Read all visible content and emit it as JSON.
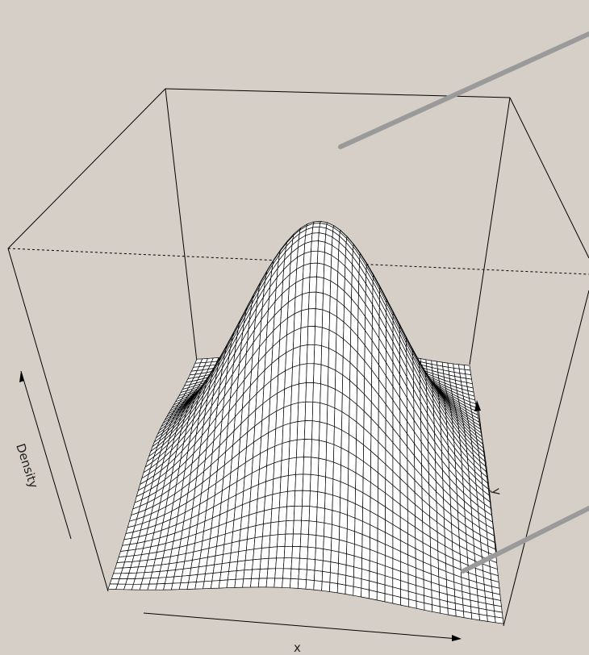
{
  "chart_data": {
    "type": "surface",
    "surface": "bivariate-density",
    "rendering": "wireframe-perspective",
    "xlabel": "x",
    "ylabel": "y",
    "zlabel": "Density",
    "peak": {
      "x": 0.5,
      "y": 0.5,
      "z": 1
    },
    "grid_lines": 50,
    "tick_labels": false,
    "colors": {
      "background": "#d6cfc7",
      "mesh_fill": "#ffffff",
      "mesh_line": "#000000",
      "box": "#000000",
      "pointer": "#9a9a9a"
    }
  }
}
